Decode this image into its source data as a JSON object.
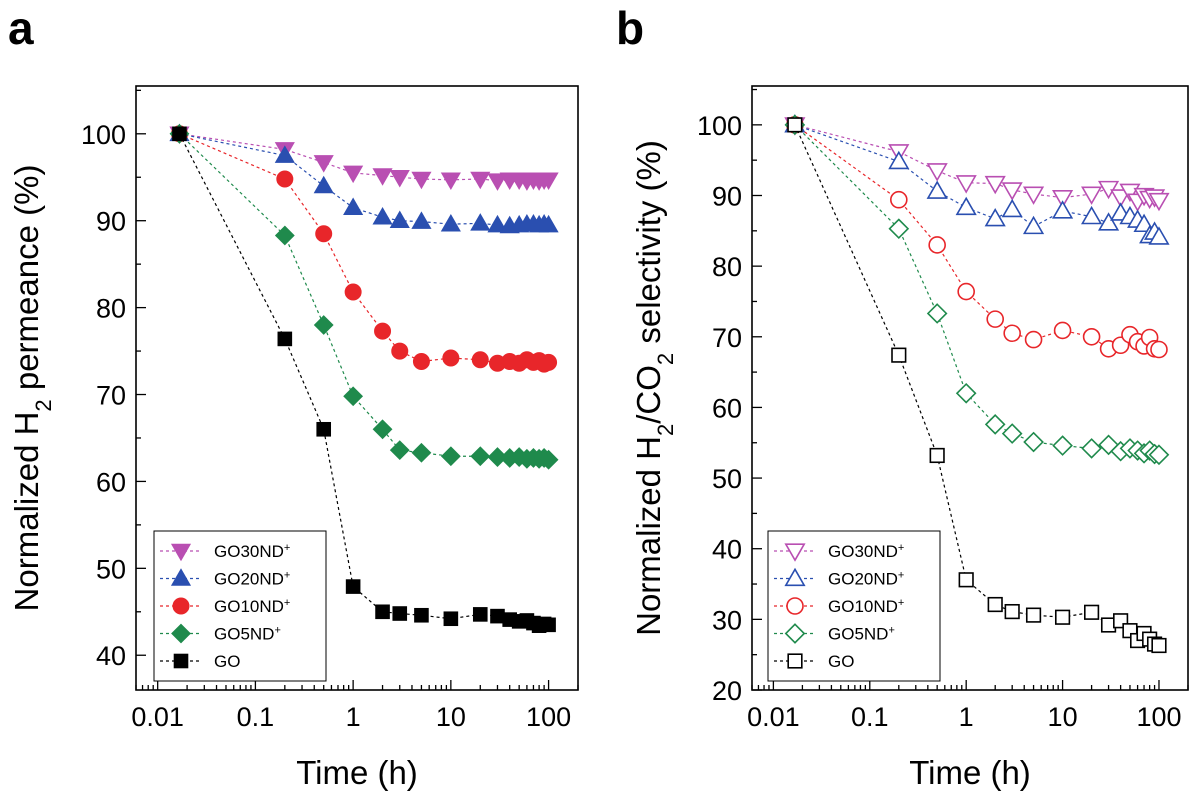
{
  "chart_data": [
    {
      "panel": "a",
      "type": "line",
      "xscale": "log",
      "xlabel": "Time (h)",
      "ylabel": "Normalized H2 permeance (%)",
      "ylabel_parts": {
        "pre": "Normalized H",
        "sub": "2",
        "post": " permeance (%)"
      },
      "xlim": [
        0.006,
        200
      ],
      "ylim": [
        36,
        105.5
      ],
      "xticks": [
        0.01,
        0.1,
        1,
        10,
        100
      ],
      "xtick_labels": [
        "0.01",
        "0.1",
        "1",
        "10",
        "100"
      ],
      "yticks": [
        40,
        50,
        60,
        70,
        80,
        90,
        100
      ],
      "ytick_labels": [
        "40",
        "50",
        "60",
        "70",
        "80",
        "90",
        "100"
      ],
      "legend_position": "bottom-left",
      "series": [
        {
          "name": "GO30ND",
          "sup": "+",
          "color": "#b94fb2",
          "marker": "triangle-down",
          "filled": true,
          "x": [
            0.0167,
            0.2,
            0.5,
            1,
            2,
            3,
            5,
            10,
            20,
            30,
            40,
            50,
            60,
            70,
            80,
            90,
            100
          ],
          "y": [
            100,
            98.2,
            96.7,
            95.5,
            95.2,
            95.0,
            94.8,
            94.7,
            94.8,
            94.6,
            94.7,
            94.7,
            94.6,
            94.7,
            94.6,
            94.7,
            94.7
          ]
        },
        {
          "name": "GO20ND",
          "sup": "+",
          "color": "#2a4fb0",
          "marker": "triangle-up",
          "filled": true,
          "x": [
            0.0167,
            0.2,
            0.5,
            1,
            2,
            3,
            5,
            10,
            20,
            30,
            40,
            50,
            60,
            70,
            80,
            90,
            100
          ],
          "y": [
            100,
            97.5,
            94.0,
            91.5,
            90.4,
            90.0,
            89.9,
            89.6,
            89.7,
            89.5,
            89.4,
            89.5,
            89.6,
            89.6,
            89.5,
            89.6,
            89.5
          ]
        },
        {
          "name": "GO10ND",
          "sup": "+",
          "color": "#e8262a",
          "marker": "circle",
          "filled": true,
          "x": [
            0.0167,
            0.2,
            0.5,
            1,
            2,
            3,
            5,
            10,
            20,
            30,
            40,
            50,
            60,
            70,
            80,
            90,
            100
          ],
          "y": [
            100,
            94.8,
            88.5,
            81.8,
            77.3,
            75.0,
            73.8,
            74.2,
            74.0,
            73.6,
            73.8,
            73.6,
            74.0,
            73.7,
            73.9,
            73.5,
            73.7
          ]
        },
        {
          "name": "GO5ND",
          "sup": "+",
          "color": "#1f8a4c",
          "marker": "diamond",
          "filled": true,
          "x": [
            0.0167,
            0.2,
            0.5,
            1,
            2,
            3,
            5,
            10,
            20,
            30,
            40,
            50,
            60,
            70,
            80,
            90,
            100
          ],
          "y": [
            100,
            88.3,
            78.0,
            69.8,
            66.0,
            63.6,
            63.3,
            62.9,
            62.9,
            62.8,
            62.7,
            62.8,
            62.6,
            62.7,
            62.6,
            62.7,
            62.5
          ]
        },
        {
          "name": "GO",
          "sup": "",
          "color": "#000000",
          "marker": "square",
          "filled": true,
          "x": [
            0.0167,
            0.2,
            0.5,
            1,
            2,
            3,
            5,
            10,
            20,
            30,
            40,
            50,
            60,
            70,
            80,
            90,
            100
          ],
          "y": [
            100,
            76.4,
            66.0,
            47.9,
            45.0,
            44.8,
            44.6,
            44.2,
            44.7,
            44.5,
            44.1,
            43.9,
            44.0,
            43.7,
            43.4,
            43.6,
            43.5
          ]
        }
      ]
    },
    {
      "panel": "b",
      "type": "line",
      "xscale": "log",
      "xlabel": "Time (h)",
      "ylabel": "Normalized H2/CO2 selectivity (%)",
      "ylabel_parts": {
        "pre": "Normalized H",
        "sub": "2",
        "mid": "/CO",
        "sub2": "2",
        "post": " selectivity (%)"
      },
      "xlim": [
        0.006,
        200
      ],
      "ylim": [
        20,
        105.5
      ],
      "xticks": [
        0.01,
        0.1,
        1,
        10,
        100
      ],
      "xtick_labels": [
        "0.01",
        "0.1",
        "1",
        "10",
        "100"
      ],
      "yticks": [
        20,
        30,
        40,
        50,
        60,
        70,
        80,
        90,
        100
      ],
      "ytick_labels": [
        "20",
        "30",
        "40",
        "50",
        "60",
        "70",
        "80",
        "90",
        "100"
      ],
      "legend_position": "bottom-left",
      "series": [
        {
          "name": "GO30ND",
          "sup": "+",
          "color": "#b94fb2",
          "marker": "triangle-down",
          "filled": false,
          "x": [
            0.0167,
            0.2,
            0.5,
            1,
            2,
            3,
            5,
            10,
            20,
            30,
            40,
            50,
            60,
            70,
            80,
            90,
            100
          ],
          "y": [
            100,
            96.2,
            93.5,
            91.8,
            91.7,
            90.8,
            90.2,
            89.7,
            90.2,
            91.0,
            89.8,
            90.6,
            89.2,
            90.0,
            89.6,
            89.8,
            89.3
          ]
        },
        {
          "name": "GO20ND",
          "sup": "+",
          "color": "#2a4fb0",
          "marker": "triangle-up",
          "filled": false,
          "x": [
            0.0167,
            0.2,
            0.5,
            1,
            2,
            3,
            5,
            10,
            20,
            30,
            40,
            50,
            60,
            70,
            80,
            90,
            100
          ],
          "y": [
            100,
            94.8,
            90.6,
            88.3,
            86.7,
            88.0,
            85.6,
            87.8,
            87.0,
            86.1,
            87.5,
            87.0,
            86.5,
            85.9,
            84.3,
            84.8,
            84.1
          ]
        },
        {
          "name": "GO10ND",
          "sup": "+",
          "color": "#e8262a",
          "marker": "circle",
          "filled": false,
          "x": [
            0.0167,
            0.2,
            0.5,
            1,
            2,
            3,
            5,
            10,
            20,
            30,
            40,
            50,
            60,
            70,
            80,
            90,
            100
          ],
          "y": [
            100,
            89.4,
            83.0,
            76.4,
            72.5,
            70.5,
            69.6,
            70.9,
            70.0,
            68.3,
            68.8,
            70.3,
            69.3,
            68.7,
            69.9,
            68.3,
            68.2
          ]
        },
        {
          "name": "GO5ND",
          "sup": "+",
          "color": "#1f8a4c",
          "marker": "diamond",
          "filled": false,
          "x": [
            0.0167,
            0.2,
            0.5,
            1,
            2,
            3,
            5,
            10,
            20,
            30,
            40,
            50,
            60,
            70,
            80,
            90,
            100
          ],
          "y": [
            100,
            85.3,
            73.3,
            62.0,
            57.6,
            56.3,
            55.1,
            54.6,
            54.2,
            54.7,
            53.8,
            54.2,
            53.9,
            53.5,
            53.9,
            53.4,
            53.3
          ]
        },
        {
          "name": "GO",
          "sup": "",
          "color": "#000000",
          "marker": "square",
          "filled": false,
          "x": [
            0.0167,
            0.2,
            0.5,
            1,
            2,
            3,
            5,
            10,
            20,
            30,
            40,
            50,
            60,
            70,
            80,
            90,
            100
          ],
          "y": [
            100,
            67.4,
            53.2,
            35.6,
            32.1,
            31.1,
            30.6,
            30.3,
            31.0,
            29.2,
            29.8,
            28.4,
            27.0,
            28.0,
            27.2,
            26.5,
            26.3
          ]
        }
      ]
    }
  ]
}
